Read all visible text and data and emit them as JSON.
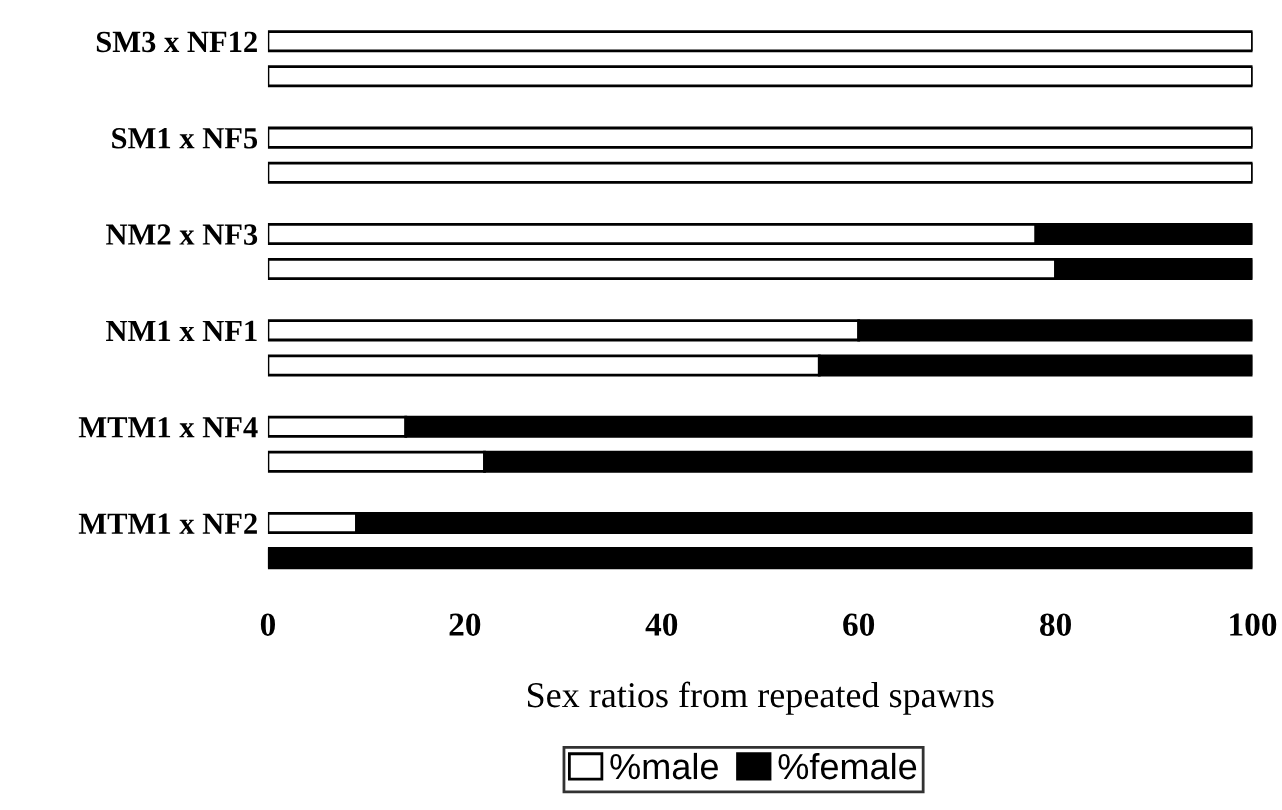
{
  "chart_data": {
    "type": "bar",
    "orientation": "horizontal",
    "stacked": true,
    "xlabel": "Sex ratios from repeated spawns",
    "categories": [
      "SM3 x NF12",
      null,
      "SM1 x NF5",
      null,
      "NM2 x NF3",
      null,
      "NM1 x NF1",
      null,
      "MTM1 x NF4",
      null,
      "MTM1 x NF2",
      null
    ],
    "series": [
      {
        "name": "%male",
        "color": "#ffffff",
        "values": [
          100,
          100,
          100,
          100,
          78,
          80,
          60,
          56,
          14,
          22,
          9,
          0
        ]
      },
      {
        "name": "%female",
        "color": "#000000",
        "values": [
          0,
          0,
          0,
          0,
          22,
          20,
          40,
          44,
          86,
          78,
          91,
          100
        ]
      }
    ],
    "xlim": [
      0,
      100
    ],
    "xticks": [
      0,
      20,
      40,
      60,
      80,
      100
    ],
    "grid": false,
    "legend": "bottom"
  }
}
